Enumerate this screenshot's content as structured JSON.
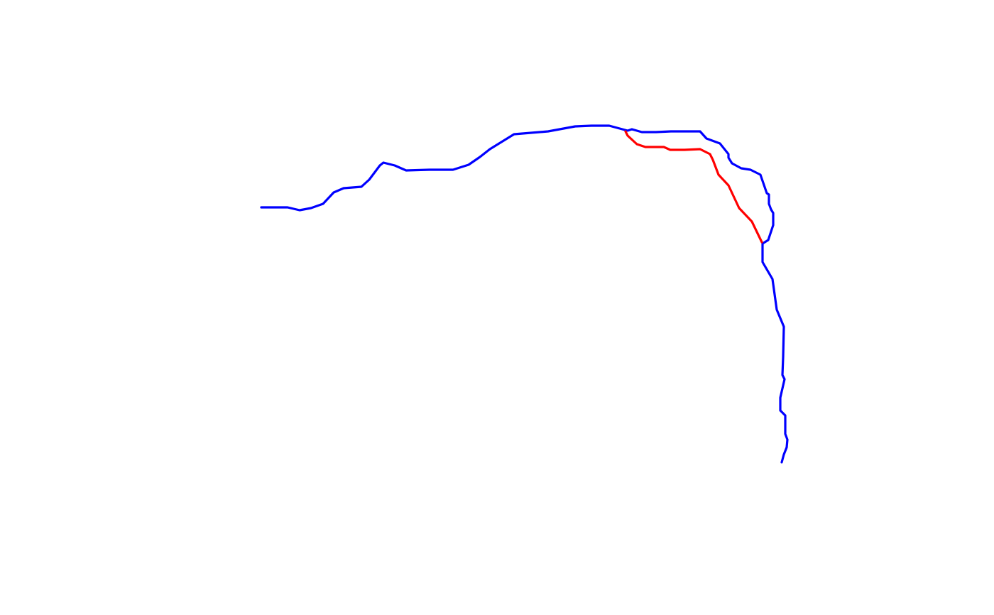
{
  "map": {
    "background_color": "#ffffff",
    "routes": [
      {
        "id": "main-route",
        "color": "#0000ff"
      },
      {
        "id": "alternate-segment",
        "color": "#ff0000"
      }
    ]
  }
}
